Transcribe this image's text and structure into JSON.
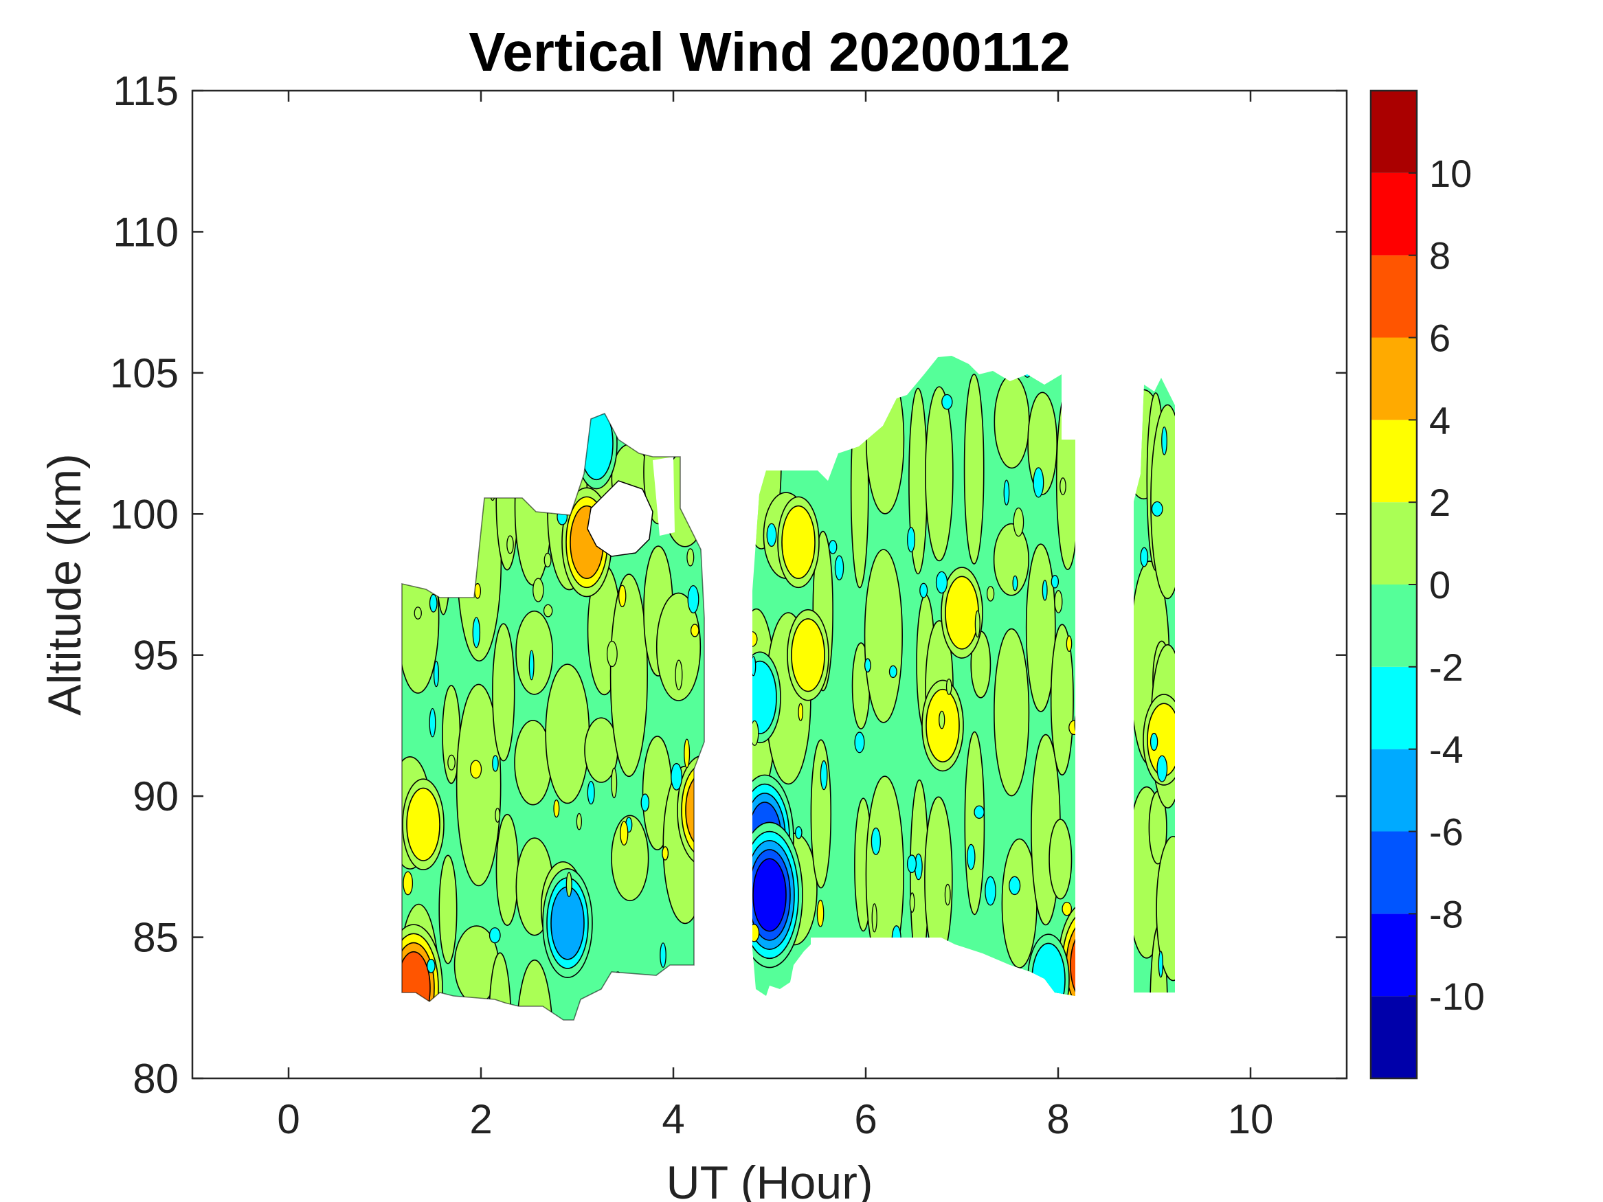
{
  "chart_data": {
    "type": "heatmap",
    "subtype": "filled-contour",
    "title": "Vertical Wind 20200112",
    "xlabel": "UT (Hour)",
    "ylabel": "Altitude (km)",
    "xlim": [
      -1,
      11
    ],
    "ylim": [
      80,
      115
    ],
    "xticks": [
      0,
      2,
      4,
      6,
      8,
      10
    ],
    "yticks": [
      80,
      85,
      90,
      95,
      100,
      105,
      110,
      115
    ],
    "colorbar": {
      "limits": [
        -12,
        12
      ],
      "ticks": [
        -10,
        -8,
        -6,
        -4,
        -2,
        0,
        2,
        4,
        6,
        8,
        10
      ],
      "levels": [
        {
          "from": -12,
          "to": -10,
          "color": "#0000aa"
        },
        {
          "from": -10,
          "to": -8,
          "color": "#0000ff"
        },
        {
          "from": -8,
          "to": -6,
          "color": "#0055ff"
        },
        {
          "from": -6,
          "to": -4,
          "color": "#00aaff"
        },
        {
          "from": -4,
          "to": -2,
          "color": "#00ffff"
        },
        {
          "from": -2,
          "to": 0,
          "color": "#55ff99"
        },
        {
          "from": 0,
          "to": 2,
          "color": "#aaff55"
        },
        {
          "from": 2,
          "to": 4,
          "color": "#ffff00"
        },
        {
          "from": 4,
          "to": 6,
          "color": "#ffaa00"
        },
        {
          "from": 6,
          "to": 8,
          "color": "#ff5500"
        },
        {
          "from": 8,
          "to": 10,
          "color": "#ff0000"
        },
        {
          "from": 10,
          "to": 12,
          "color": "#aa0000"
        }
      ]
    },
    "data_regions": [
      {
        "x": [
          1.2,
          4.3
        ],
        "alt": [
          82,
          103.5
        ]
      },
      {
        "x": [
          4.8,
          8.3
        ],
        "alt": [
          83,
          105.5
        ]
      },
      {
        "x": [
          8.8,
          9.2
        ],
        "alt": [
          83,
          105
        ]
      }
    ],
    "features": [
      {
        "x": 4.95,
        "alt": 88.5,
        "value": -7
      },
      {
        "x": 5.0,
        "alt": 86.5,
        "value": -9
      },
      {
        "x": 2.9,
        "alt": 85.5,
        "value": -5
      },
      {
        "x": 3.1,
        "alt": 99,
        "value": 5
      },
      {
        "x": 4.3,
        "alt": 89.5,
        "value": 5
      },
      {
        "x": 1.3,
        "alt": 83.2,
        "value": 7
      },
      {
        "x": 8.3,
        "alt": 84,
        "value": 7
      },
      {
        "x": 1.4,
        "alt": 89,
        "value": 3
      },
      {
        "x": 7.0,
        "alt": 96.5,
        "value": 3
      },
      {
        "x": 6.8,
        "alt": 92.5,
        "value": 3
      },
      {
        "x": 9.1,
        "alt": 92,
        "value": 3
      },
      {
        "x": 5.4,
        "alt": 95,
        "value": 4
      },
      {
        "x": 5.3,
        "alt": 99,
        "value": 3
      },
      {
        "x": 4.9,
        "alt": 93.5,
        "value": -3
      },
      {
        "x": 3.2,
        "alt": 102.5,
        "value": -3
      },
      {
        "x": 7.9,
        "alt": 83.5,
        "value": -3
      }
    ]
  }
}
